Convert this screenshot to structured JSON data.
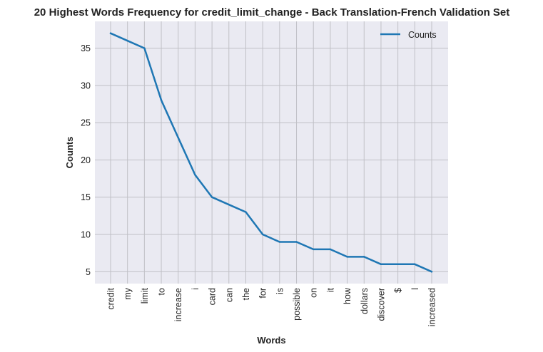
{
  "chart_data": {
    "type": "line",
    "title": "20 Highest Words Frequency for credit_limit_change - Back Translation-French Validation Set",
    "xlabel": "Words",
    "ylabel": "Counts",
    "categories": [
      "credit",
      "my",
      "limit",
      "to",
      "increase",
      "i",
      "card",
      "can",
      "the",
      "for",
      "is",
      "possible",
      "on",
      "it",
      "how",
      "dollars",
      "discover",
      "$",
      "l",
      "increased"
    ],
    "series": [
      {
        "name": "Counts",
        "values": [
          37,
          36,
          35,
          28,
          23,
          18,
          15,
          14,
          13,
          10,
          9,
          9,
          8,
          8,
          7,
          7,
          6,
          6,
          6,
          5
        ]
      }
    ],
    "ylim": [
      3.4,
      38.6
    ],
    "yticks": [
      5,
      10,
      15,
      20,
      25,
      30,
      35
    ],
    "grid": true,
    "legend": "top-right",
    "colors": {
      "line": "#1f77b4",
      "background": "#eaeaf2",
      "grid": "#c0c0c6"
    }
  }
}
